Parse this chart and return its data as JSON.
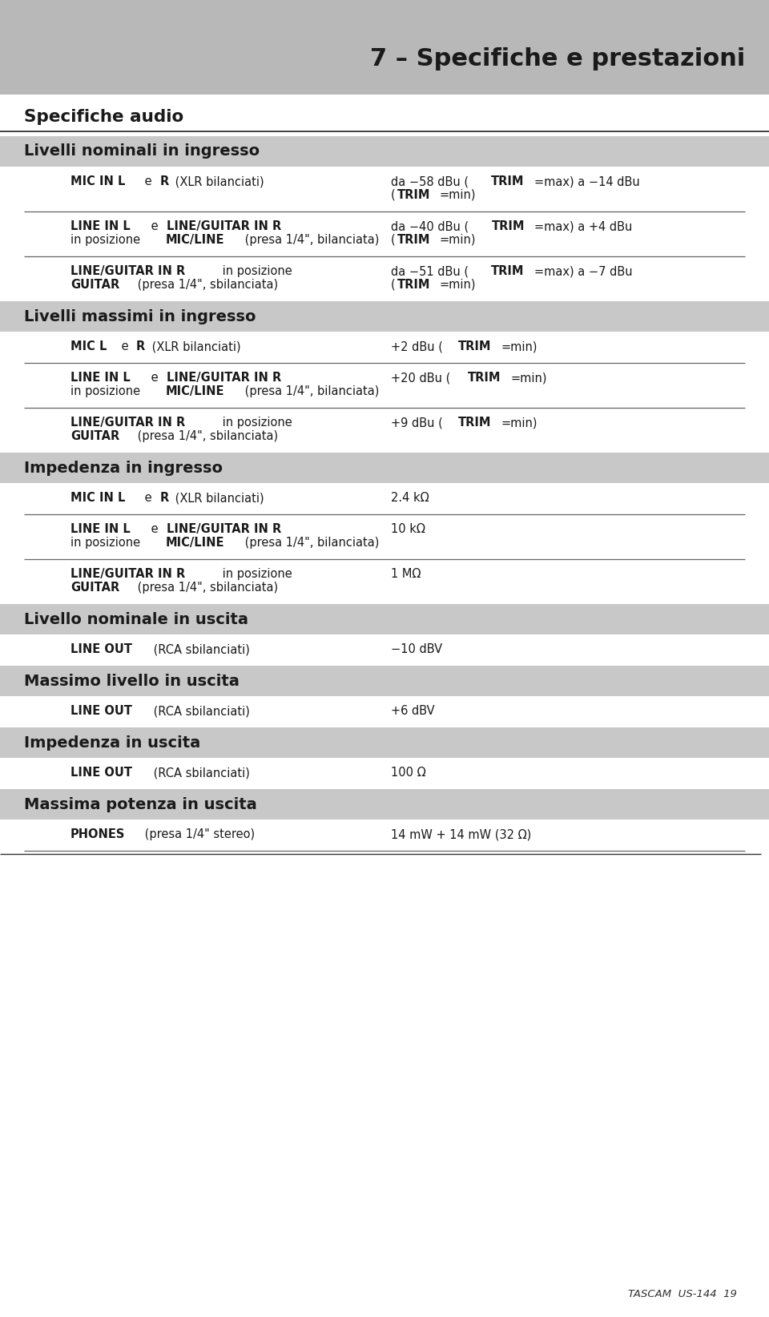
{
  "title": "7 – Specifiche e prestazioni",
  "title_bg": "#b8b8b8",
  "section_bg": "#c8c8c8",
  "white_bg": "#ffffff",
  "footer_text": "TASCAM  US-144  19",
  "specifiche_audio_label": "Specifiche audio",
  "sections": [
    {
      "type": "subsection_header",
      "text": "Livelli nominali in ingresso"
    },
    {
      "type": "row",
      "left_line1": [
        {
          "t": "MIC IN L",
          "b": true
        },
        {
          "t": " e ",
          "b": false
        },
        {
          "t": "R",
          "b": true
        },
        {
          "t": " (XLR bilanciati)",
          "b": false
        }
      ],
      "left_line2": [],
      "right_line1": [
        {
          "t": "da −58 dBu (",
          "b": false
        },
        {
          "t": "TRIM",
          "b": true
        },
        {
          "t": "=max) a −14 dBu",
          "b": false
        }
      ],
      "right_line2": [
        {
          "t": "(",
          "b": false
        },
        {
          "t": "TRIM",
          "b": true
        },
        {
          "t": "=min)",
          "b": false
        }
      ],
      "divider": true
    },
    {
      "type": "row",
      "left_line1": [
        {
          "t": "LINE IN L",
          "b": true
        },
        {
          "t": " e ",
          "b": false
        },
        {
          "t": "LINE/GUITAR IN R",
          "b": true
        }
      ],
      "left_line2": [
        {
          "t": "in posizione ",
          "b": false
        },
        {
          "t": "MIC/LINE",
          "b": true
        },
        {
          "t": " (presa 1/4\", bilanciata)",
          "b": false
        }
      ],
      "right_line1": [
        {
          "t": "da −40 dBu (",
          "b": false
        },
        {
          "t": "TRIM",
          "b": true
        },
        {
          "t": "=max) a +4 dBu",
          "b": false
        }
      ],
      "right_line2": [
        {
          "t": "(",
          "b": false
        },
        {
          "t": "TRIM",
          "b": true
        },
        {
          "t": "=min)",
          "b": false
        }
      ],
      "divider": true
    },
    {
      "type": "row",
      "left_line1": [
        {
          "t": "LINE/GUITAR IN R",
          "b": true
        },
        {
          "t": " in posizione",
          "b": false
        }
      ],
      "left_line2": [
        {
          "t": "GUITAR",
          "b": true
        },
        {
          "t": " (presa 1/4\", sbilanciata)",
          "b": false
        }
      ],
      "right_line1": [
        {
          "t": "da −51 dBu (",
          "b": false
        },
        {
          "t": "TRIM",
          "b": true
        },
        {
          "t": "=max) a −7 dBu",
          "b": false
        }
      ],
      "right_line2": [
        {
          "t": "(",
          "b": false
        },
        {
          "t": "TRIM",
          "b": true
        },
        {
          "t": "=min)",
          "b": false
        }
      ],
      "divider": false
    },
    {
      "type": "subsection_header",
      "text": "Livelli massimi in ingresso"
    },
    {
      "type": "row",
      "left_line1": [
        {
          "t": "MIC L",
          "b": true
        },
        {
          "t": " e ",
          "b": false
        },
        {
          "t": "R",
          "b": true
        },
        {
          "t": " (XLR bilanciati)",
          "b": false
        }
      ],
      "left_line2": [],
      "right_line1": [
        {
          "t": "+2 dBu (",
          "b": false
        },
        {
          "t": "TRIM",
          "b": true
        },
        {
          "t": "=min)",
          "b": false
        }
      ],
      "right_line2": [],
      "divider": true
    },
    {
      "type": "row",
      "left_line1": [
        {
          "t": "LINE IN L",
          "b": true
        },
        {
          "t": " e ",
          "b": false
        },
        {
          "t": "LINE/GUITAR IN R",
          "b": true
        }
      ],
      "left_line2": [
        {
          "t": "in posizione ",
          "b": false
        },
        {
          "t": "MIC/LINE",
          "b": true
        },
        {
          "t": " (presa 1/4\", bilanciata)",
          "b": false
        }
      ],
      "right_line1": [
        {
          "t": "+20 dBu (",
          "b": false
        },
        {
          "t": "TRIM",
          "b": true
        },
        {
          "t": "=min)",
          "b": false
        }
      ],
      "right_line2": [],
      "divider": true
    },
    {
      "type": "row",
      "left_line1": [
        {
          "t": "LINE/GUITAR IN R",
          "b": true
        },
        {
          "t": " in posizione",
          "b": false
        }
      ],
      "left_line2": [
        {
          "t": "GUITAR",
          "b": true
        },
        {
          "t": " (presa 1/4\", sbilanciata)",
          "b": false
        }
      ],
      "right_line1": [
        {
          "t": "+9 dBu (",
          "b": false
        },
        {
          "t": "TRIM",
          "b": true
        },
        {
          "t": "=min)",
          "b": false
        }
      ],
      "right_line2": [],
      "divider": false
    },
    {
      "type": "subsection_header",
      "text": "Impedenza in ingresso"
    },
    {
      "type": "row",
      "left_line1": [
        {
          "t": "MIC IN L",
          "b": true
        },
        {
          "t": " e ",
          "b": false
        },
        {
          "t": "R",
          "b": true
        },
        {
          "t": " (XLR bilanciati)",
          "b": false
        }
      ],
      "left_line2": [],
      "right_line1": [
        {
          "t": "2.4 kΩ",
          "b": false
        }
      ],
      "right_line2": [],
      "divider": true
    },
    {
      "type": "row",
      "left_line1": [
        {
          "t": "LINE IN L",
          "b": true
        },
        {
          "t": " e ",
          "b": false
        },
        {
          "t": "LINE/GUITAR IN R",
          "b": true
        }
      ],
      "left_line2": [
        {
          "t": "in posizione ",
          "b": false
        },
        {
          "t": "MIC/LINE",
          "b": true
        },
        {
          "t": " (presa 1/4\", bilanciata)",
          "b": false
        }
      ],
      "right_line1": [
        {
          "t": "10 kΩ",
          "b": false
        }
      ],
      "right_line2": [],
      "divider": true
    },
    {
      "type": "row",
      "left_line1": [
        {
          "t": "LINE/GUITAR IN R",
          "b": true
        },
        {
          "t": " in posizione",
          "b": false
        }
      ],
      "left_line2": [
        {
          "t": "GUITAR",
          "b": true
        },
        {
          "t": " (presa 1/4\", sbilanciata)",
          "b": false
        }
      ],
      "right_line1": [
        {
          "t": "1 MΩ",
          "b": false
        }
      ],
      "right_line2": [],
      "divider": false
    },
    {
      "type": "subsection_header",
      "text": "Livello nominale in uscita"
    },
    {
      "type": "row",
      "left_line1": [
        {
          "t": "LINE OUT",
          "b": true
        },
        {
          "t": " (RCA sbilanciati)",
          "b": false
        }
      ],
      "left_line2": [],
      "right_line1": [
        {
          "t": "−10 dBV",
          "b": false
        }
      ],
      "right_line2": [],
      "divider": false
    },
    {
      "type": "subsection_header",
      "text": "Massimo livello in uscita"
    },
    {
      "type": "row",
      "left_line1": [
        {
          "t": "LINE OUT",
          "b": true
        },
        {
          "t": " (RCA sbilanciati)",
          "b": false
        }
      ],
      "left_line2": [],
      "right_line1": [
        {
          "t": "+6 dBV",
          "b": false
        }
      ],
      "right_line2": [],
      "divider": false
    },
    {
      "type": "subsection_header",
      "text": "Impedenza in uscita"
    },
    {
      "type": "row",
      "left_line1": [
        {
          "t": "LINE OUT",
          "b": true
        },
        {
          "t": " (RCA sbilanciati)",
          "b": false
        }
      ],
      "left_line2": [],
      "right_line1": [
        {
          "t": "100 Ω",
          "b": false
        }
      ],
      "right_line2": [],
      "divider": false
    },
    {
      "type": "subsection_header",
      "text": "Massima potenza in uscita"
    },
    {
      "type": "row",
      "left_line1": [
        {
          "t": "PHONES",
          "b": true
        },
        {
          "t": " (presa 1/4\" stereo)",
          "b": false
        }
      ],
      "left_line2": [],
      "right_line1": [
        {
          "t": "14 mW + 14 mW (32 Ω)",
          "b": false
        }
      ],
      "right_line2": [],
      "divider": true
    }
  ]
}
